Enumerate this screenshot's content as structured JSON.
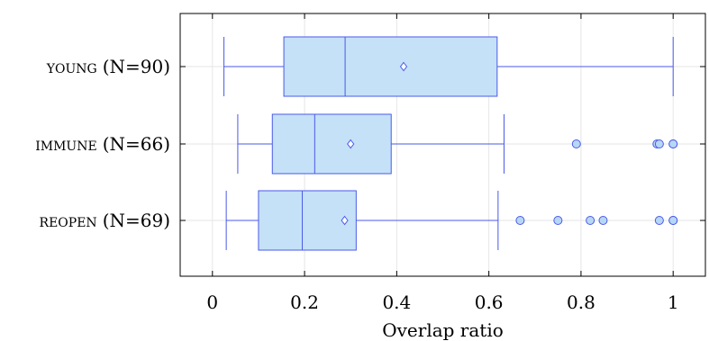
{
  "chart_data": {
    "type": "boxplot",
    "orientation": "horizontal",
    "xlabel": "Overlap ratio",
    "xlim": [
      -0.07,
      1.07
    ],
    "xticks": [
      0,
      0.2,
      0.4,
      0.6,
      0.8,
      1
    ],
    "xtick_labels": [
      "0",
      "0.2",
      "0.4",
      "0.6",
      "0.8",
      "1"
    ],
    "grid": true,
    "colors": {
      "box_fill": "#c4e1f8",
      "stroke": "#4a5ae8",
      "outlier_fill": "#b7d7f6",
      "grid": "#e6e6e6"
    },
    "groups": [
      {
        "name_caps": "young",
        "count_label": "(N=90)",
        "whisker_low": 0.025,
        "q1": 0.155,
        "median": 0.288,
        "q3": 0.618,
        "whisker_high": 1.0,
        "mean": 0.415,
        "outliers": []
      },
      {
        "name_caps": "immune",
        "count_label": "(N=66)",
        "whisker_low": 0.055,
        "q1": 0.13,
        "median": 0.222,
        "q3": 0.388,
        "whisker_high": 0.633,
        "mean": 0.3,
        "outliers": [
          0.79,
          0.965,
          0.97,
          1.0,
          1.0
        ]
      },
      {
        "name_caps": "reopen",
        "count_label": "(N=69)",
        "whisker_low": 0.03,
        "q1": 0.1,
        "median": 0.195,
        "q3": 0.312,
        "whisker_high": 0.62,
        "mean": 0.287,
        "outliers": [
          0.668,
          0.75,
          0.82,
          0.848,
          0.97,
          1.0,
          1.0
        ]
      }
    ]
  }
}
